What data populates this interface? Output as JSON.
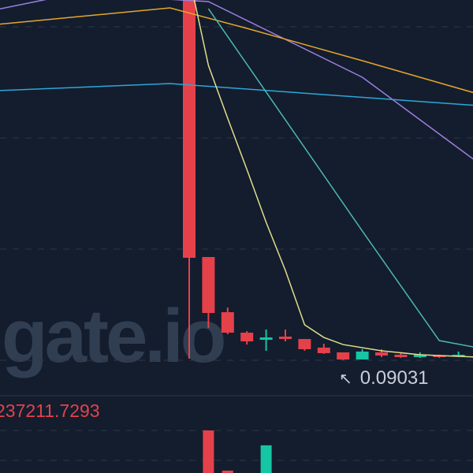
{
  "chart_data": {
    "type": "candlestick",
    "watermark": "gate.io",
    "ylim": [
      0.0604,
      0.5
    ],
    "grid": true,
    "grid_levels": [
      0.4695,
      0.343,
      0.2165,
      0.09
    ],
    "colors": {
      "up": "#16c5a3",
      "down": "#e5414a",
      "background": "#131d2e",
      "grid": "#2c3646"
    },
    "candles": [
      {
        "i": 10,
        "open": 0.52,
        "high": 0.53,
        "low": 0.0918,
        "close": 0.2066
      },
      {
        "i": 11,
        "open": 0.2075,
        "high": 0.2075,
        "low": 0.1268,
        "close": 0.1438
      },
      {
        "i": 12,
        "open": 0.1447,
        "high": 0.1501,
        "low": 0.1196,
        "close": 0.1214
      },
      {
        "i": 13,
        "open": 0.1214,
        "high": 0.1232,
        "low": 0.1079,
        "close": 0.1115
      },
      {
        "i": 14,
        "open": 0.1133,
        "high": 0.125,
        "low": 0.1008,
        "close": 0.116
      },
      {
        "i": 15,
        "open": 0.1169,
        "high": 0.125,
        "low": 0.1115,
        "close": 0.1142
      },
      {
        "i": 16,
        "open": 0.1142,
        "high": 0.1142,
        "low": 0.1008,
        "close": 0.1026
      },
      {
        "i": 17,
        "open": 0.1044,
        "high": 0.1088,
        "low": 0.0972,
        "close": 0.0981
      },
      {
        "i": 18,
        "open": 0.099,
        "high": 0.099,
        "low": 0.09031,
        "close": 0.0909
      },
      {
        "i": 19,
        "open": 0.0909,
        "high": 0.1026,
        "low": 0.0909,
        "close": 0.0999
      },
      {
        "i": 20,
        "open": 0.099,
        "high": 0.1026,
        "low": 0.0936,
        "close": 0.0954
      },
      {
        "i": 21,
        "open": 0.0963,
        "high": 0.0981,
        "low": 0.0927,
        "close": 0.0936
      },
      {
        "i": 22,
        "open": 0.0936,
        "high": 0.099,
        "low": 0.0927,
        "close": 0.0963
      },
      {
        "i": 23,
        "open": 0.0954,
        "high": 0.0963,
        "low": 0.0927,
        "close": 0.0936
      },
      {
        "i": 24,
        "open": 0.0945,
        "high": 0.0999,
        "low": 0.0936,
        "close": 0.0963
      }
    ],
    "moving_averages": [
      {
        "color": "#a07ee0",
        "points": [
          [
            0,
            0.4892
          ],
          [
            4,
            0.507
          ],
          [
            11,
            0.4982
          ],
          [
            19,
            0.4121
          ],
          [
            25,
            0.3152
          ]
        ]
      },
      {
        "color": "#e6a729",
        "points": [
          [
            0,
            0.4722
          ],
          [
            9,
            0.491
          ],
          [
            13,
            0.4677
          ],
          [
            19,
            0.4309
          ],
          [
            25,
            0.3932
          ]
        ]
      },
      {
        "color": "#2ea6d9",
        "points": [
          [
            0,
            0.3968
          ],
          [
            9,
            0.4049
          ],
          [
            25,
            0.3798
          ]
        ]
      },
      {
        "color": "#e3dc8a",
        "points": [
          [
            10,
            0.527
          ],
          [
            11,
            0.4255
          ],
          [
            12,
            0.3654
          ],
          [
            13,
            0.3071
          ],
          [
            14,
            0.247
          ],
          [
            15,
            0.1923
          ],
          [
            16,
            0.1304
          ],
          [
            17,
            0.116
          ],
          [
            18,
            0.1079
          ],
          [
            20,
            0.1008
          ],
          [
            22,
            0.0963
          ],
          [
            25,
            0.0936
          ]
        ]
      },
      {
        "color": "#4bb8b0",
        "points": [
          [
            11,
            0.4901
          ],
          [
            15,
            0.3636
          ],
          [
            19,
            0.2371
          ],
          [
            23,
            0.1124
          ],
          [
            25,
            0.1043
          ]
        ]
      }
    ],
    "low_marker": {
      "label": "0.09031",
      "value": 0.09031,
      "i": 18
    },
    "volume": {
      "label": "237211.7293",
      "bars": [
        {
          "i": 11,
          "value": 160000,
          "dir": "down"
        },
        {
          "i": 12,
          "value": 9000,
          "dir": "down"
        },
        {
          "i": 14,
          "value": 104000,
          "dir": "up"
        }
      ]
    }
  }
}
